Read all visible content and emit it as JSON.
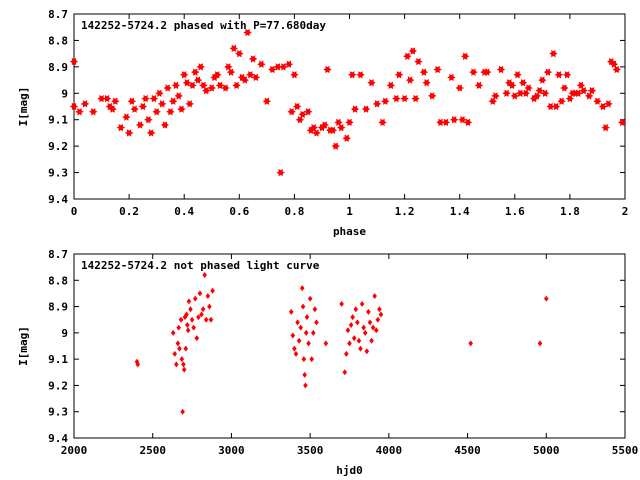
{
  "chart_data": [
    {
      "type": "scatter",
      "title": "142252-5724.2 phased with P=77.680day",
      "xlabel": "phase",
      "ylabel": "I[mag]",
      "xlim": [
        0,
        2
      ],
      "ylim": [
        8.7,
        9.4
      ],
      "y_inverted": true,
      "grid": false,
      "marker_color": "#ff0000",
      "x_ticks": [
        0,
        0.2,
        0.4,
        0.6,
        0.8,
        1,
        1.2,
        1.4,
        1.6,
        1.8,
        2
      ],
      "x_tick_labels": [
        "0",
        "0.2",
        "0.4",
        "0.6",
        "0.8",
        "1",
        "1.2",
        "1.4",
        "1.6",
        "1.8",
        "2"
      ],
      "y_ticks": [
        8.7,
        8.8,
        8.9,
        9.0,
        9.1,
        9.2,
        9.3,
        9.4
      ],
      "y_tick_labels": [
        "8.7",
        "8.8",
        "8.9",
        "9",
        "9.1",
        "9.2",
        "9.3",
        "9.4"
      ],
      "series": [
        {
          "x": [
            0.0,
            0.0,
            0.02,
            0.04,
            0.07,
            0.1,
            0.12,
            0.13,
            0.14,
            0.15,
            0.17,
            0.19,
            0.2,
            0.21,
            0.22,
            0.24,
            0.25,
            0.26,
            0.27,
            0.28,
            0.29,
            0.3,
            0.31,
            0.32,
            0.33,
            0.34,
            0.35,
            0.36,
            0.37,
            0.38,
            0.39,
            0.4,
            0.41,
            0.42,
            0.43,
            0.44,
            0.45,
            0.46,
            0.47,
            0.48,
            0.5,
            0.51,
            0.52,
            0.53,
            0.55,
            0.56,
            0.57,
            0.58,
            0.59,
            0.6,
            0.61,
            0.62,
            0.63,
            0.64,
            0.65,
            0.66,
            0.68,
            0.7,
            0.72,
            0.74,
            0.75,
            0.76,
            0.78,
            0.79,
            0.8,
            0.81,
            0.82,
            0.83,
            0.85,
            0.86,
            0.87,
            0.88,
            0.9,
            0.91,
            0.92,
            0.93,
            0.94,
            0.95,
            0.96,
            0.97,
            0.99,
            1.0,
            1.01,
            1.02,
            1.04,
            1.06,
            1.08,
            1.1,
            1.12,
            1.13,
            1.15,
            1.17,
            1.18,
            1.2,
            1.21,
            1.22,
            1.23,
            1.24,
            1.25,
            1.27,
            1.28,
            1.3,
            1.32,
            1.33,
            1.35,
            1.37,
            1.38,
            1.4,
            1.41,
            1.42,
            1.43,
            1.45,
            1.47,
            1.49,
            1.5,
            1.52,
            1.53,
            1.55,
            1.57,
            1.58,
            1.59,
            1.6,
            1.61,
            1.62,
            1.63,
            1.64,
            1.65,
            1.67,
            1.68,
            1.69,
            1.7,
            1.71,
            1.72,
            1.73,
            1.74,
            1.75,
            1.76,
            1.77,
            1.78,
            1.79,
            1.8,
            1.81,
            1.82,
            1.83,
            1.84,
            1.85,
            1.87,
            1.88,
            1.9,
            1.92,
            1.93,
            1.94,
            1.95,
            1.96,
            1.97,
            1.99
          ],
          "y": [
            8.88,
            9.05,
            9.07,
            9.04,
            9.07,
            9.02,
            9.02,
            9.05,
            9.06,
            9.03,
            9.13,
            9.09,
            9.15,
            9.03,
            9.06,
            9.12,
            9.05,
            9.02,
            9.1,
            9.15,
            9.02,
            9.07,
            9.0,
            9.04,
            9.12,
            8.98,
            9.07,
            9.03,
            8.97,
            9.01,
            9.06,
            8.93,
            8.96,
            9.04,
            8.97,
            8.92,
            8.95,
            8.9,
            8.97,
            8.99,
            8.98,
            8.94,
            8.93,
            8.97,
            8.98,
            8.9,
            8.92,
            8.83,
            8.97,
            8.85,
            8.94,
            8.95,
            8.77,
            8.93,
            8.87,
            8.94,
            8.89,
            9.03,
            8.91,
            8.9,
            9.3,
            8.9,
            8.89,
            9.07,
            8.93,
            9.05,
            9.1,
            9.08,
            9.07,
            9.14,
            9.13,
            9.15,
            9.13,
            9.12,
            8.91,
            9.14,
            9.14,
            9.2,
            9.11,
            9.13,
            9.17,
            9.11,
            8.93,
            9.06,
            8.93,
            9.06,
            8.96,
            9.04,
            9.11,
            9.03,
            8.97,
            9.02,
            8.93,
            9.02,
            8.86,
            8.95,
            8.84,
            9.02,
            8.88,
            8.92,
            8.96,
            9.01,
            8.91,
            9.11,
            9.11,
            8.94,
            9.1,
            8.98,
            9.1,
            8.86,
            9.11,
            8.92,
            8.97,
            8.92,
            8.92,
            9.03,
            9.01,
            8.91,
            9.0,
            8.96,
            8.97,
            9.01,
            8.93,
            9.0,
            8.96,
            9.0,
            8.98,
            9.02,
            9.01,
            8.99,
            8.95,
            9.0,
            8.92,
            9.05,
            8.85,
            9.05,
            8.93,
            9.03,
            8.98,
            8.93,
            9.02,
            9.0,
            9.0,
            9.0,
            8.97,
            8.99,
            9.01,
            8.99,
            9.03,
            9.05,
            9.13,
            9.04,
            8.88,
            8.89,
            8.91,
            9.11
          ]
        }
      ]
    },
    {
      "type": "scatter",
      "title": "142252-5724.2 not phased light curve",
      "xlabel": "hjd0",
      "ylabel": "I[mag]",
      "xlim": [
        2000,
        5500
      ],
      "ylim": [
        8.7,
        9.4
      ],
      "y_inverted": true,
      "grid": false,
      "marker_color": "#ff0000",
      "x_ticks": [
        2000,
        2500,
        3000,
        3500,
        4000,
        4500,
        5000,
        5500
      ],
      "x_tick_labels": [
        "2000",
        "2500",
        "3000",
        "3500",
        "4000",
        "4500",
        "5000",
        "5500"
      ],
      "y_ticks": [
        8.7,
        8.8,
        8.9,
        9.0,
        9.1,
        9.2,
        9.3,
        9.4
      ],
      "y_tick_labels": [
        "8.7",
        "8.8",
        "8.9",
        "9",
        "9.1",
        "9.2",
        "9.3",
        "9.4"
      ],
      "series": [
        {
          "x": [
            2400,
            2405,
            2630,
            2640,
            2650,
            2660,
            2665,
            2670,
            2680,
            2685,
            2690,
            2695,
            2700,
            2705,
            2710,
            2715,
            2720,
            2725,
            2730,
            2740,
            2750,
            2760,
            2770,
            2780,
            2790,
            2800,
            2810,
            2820,
            2830,
            2840,
            2850,
            2860,
            2870,
            2880,
            3380,
            3390,
            3400,
            3410,
            3420,
            3430,
            3440,
            3450,
            3455,
            3460,
            3465,
            3470,
            3475,
            3480,
            3490,
            3500,
            3510,
            3520,
            3530,
            3540,
            3600,
            3700,
            3720,
            3730,
            3740,
            3750,
            3760,
            3770,
            3780,
            3790,
            3800,
            3810,
            3820,
            3830,
            3840,
            3850,
            3860,
            3870,
            3880,
            3890,
            3900,
            3910,
            3920,
            3930,
            3940,
            3950,
            4520,
            4960,
            5000
          ],
          "y": [
            9.11,
            9.12,
            9.0,
            9.08,
            9.12,
            9.04,
            8.98,
            9.06,
            8.95,
            9.1,
            9.3,
            9.12,
            9.14,
            8.94,
            9.06,
            8.93,
            8.97,
            8.99,
            8.88,
            8.91,
            8.95,
            8.98,
            8.87,
            9.02,
            8.94,
            8.85,
            8.93,
            8.91,
            8.78,
            8.95,
            8.86,
            8.9,
            8.95,
            8.84,
            8.92,
            9.01,
            9.06,
            9.08,
            8.96,
            9.03,
            8.98,
            8.83,
            8.9,
            9.1,
            9.16,
            9.2,
            9.0,
            8.94,
            9.04,
            8.87,
            9.1,
            9.0,
            8.91,
            8.96,
            9.04,
            8.89,
            9.15,
            9.08,
            8.99,
            9.04,
            8.97,
            8.94,
            9.02,
            8.91,
            8.96,
            9.03,
            9.06,
            8.89,
            8.98,
            9.0,
            9.07,
            8.92,
            8.96,
            9.03,
            8.98,
            8.86,
            8.99,
            8.95,
            8.91,
            8.93,
            9.04,
            9.04,
            8.87
          ]
        }
      ]
    }
  ]
}
